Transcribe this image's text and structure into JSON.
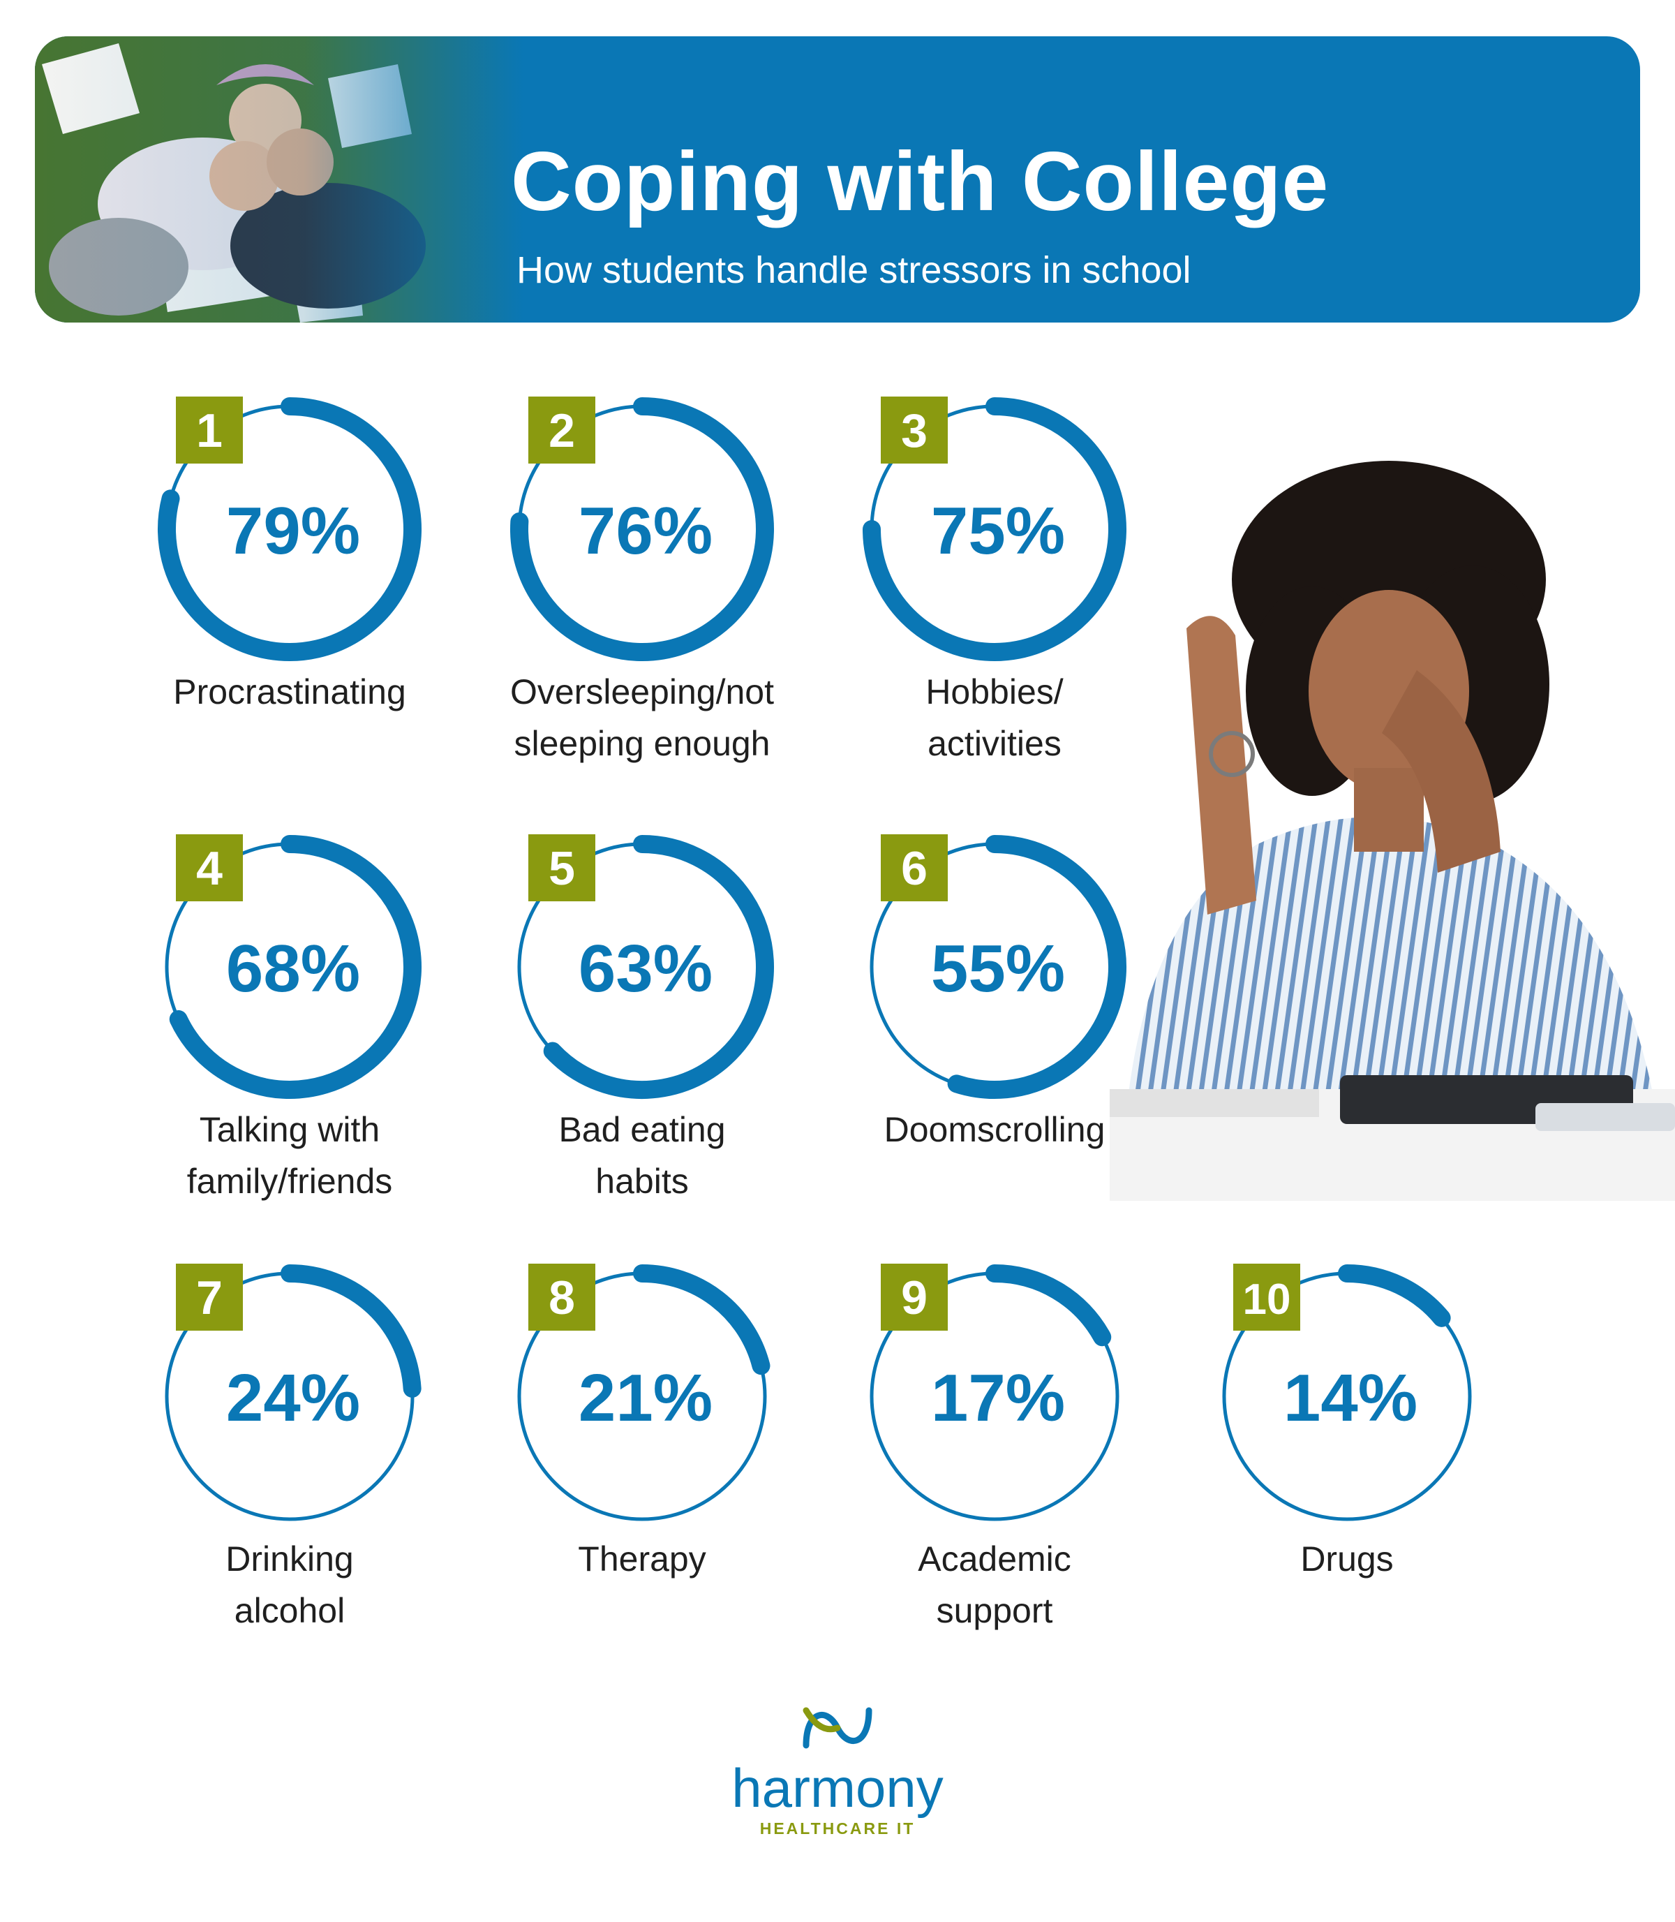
{
  "header": {
    "title": "Coping with College",
    "subtitle": "How students handle stressors in school"
  },
  "colors": {
    "primary_blue": "#0a77b5",
    "rank_badge_green": "#8a9a10",
    "text_dark": "#1f1f1f"
  },
  "chart_data": {
    "type": "radial-progress",
    "title": "Coping with College",
    "subtitle": "How students handle stressors in school",
    "unit": "%",
    "items": [
      {
        "rank": "1",
        "value": 79,
        "value_label": "79%",
        "label_lines": [
          "Procrastinating"
        ]
      },
      {
        "rank": "2",
        "value": 76,
        "value_label": "76%",
        "label_lines": [
          "Oversleeping/not",
          "sleeping enough"
        ]
      },
      {
        "rank": "3",
        "value": 75,
        "value_label": "75%",
        "label_lines": [
          "Hobbies/",
          "activities"
        ]
      },
      {
        "rank": "4",
        "value": 68,
        "value_label": "68%",
        "label_lines": [
          "Talking with",
          "family/friends"
        ]
      },
      {
        "rank": "5",
        "value": 63,
        "value_label": "63%",
        "label_lines": [
          "Bad eating",
          "habits"
        ]
      },
      {
        "rank": "6",
        "value": 55,
        "value_label": "55%",
        "label_lines": [
          "Doomscrolling"
        ]
      },
      {
        "rank": "7",
        "value": 24,
        "value_label": "24%",
        "label_lines": [
          "Drinking",
          "alcohol"
        ]
      },
      {
        "rank": "8",
        "value": 21,
        "value_label": "21%",
        "label_lines": [
          "Therapy"
        ]
      },
      {
        "rank": "9",
        "value": 17,
        "value_label": "17%",
        "label_lines": [
          "Academic",
          "support"
        ]
      },
      {
        "rank": "10",
        "value": 14,
        "value_label": "14%",
        "label_lines": [
          "Drugs"
        ]
      }
    ]
  },
  "logo": {
    "wordmark": "harmony",
    "tagline": "HEALTHCARE IT"
  },
  "images": {
    "banner_photo": "students-lying-on-grass-photo",
    "side_photo": "stressed-student-rubbing-eyes-photo"
  }
}
